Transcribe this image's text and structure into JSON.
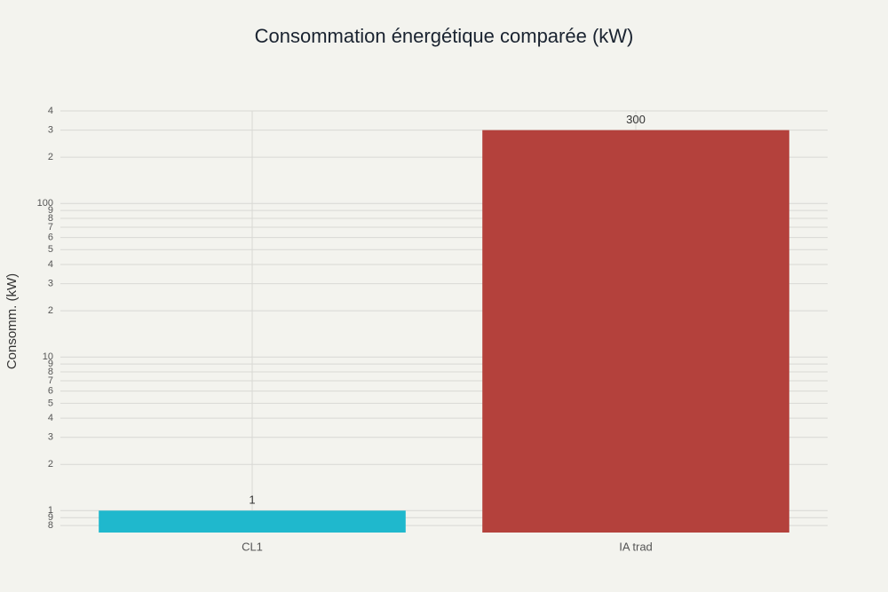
{
  "chart_data": {
    "type": "bar",
    "title": "Consommation énergétique comparée (kW)",
    "ylabel": "Consomm. (kW)",
    "categories": [
      "CL1",
      "IA trad"
    ],
    "values": [
      1,
      300
    ],
    "colors": [
      "#1FB8CD",
      "#B4413C"
    ],
    "log_y": true,
    "ylim": [
      0.72,
      400
    ],
    "yticks": [
      {
        "value": 0.8,
        "label": "8"
      },
      {
        "value": 0.9,
        "label": "9"
      },
      1,
      2,
      3,
      4,
      5,
      6,
      7,
      8,
      9,
      10,
      {
        "value": 20,
        "label": "2"
      },
      {
        "value": 30,
        "label": "3"
      },
      {
        "value": 40,
        "label": "4"
      },
      {
        "value": 50,
        "label": "5"
      },
      {
        "value": 60,
        "label": "6"
      },
      {
        "value": 70,
        "label": "7"
      },
      {
        "value": 80,
        "label": "8"
      },
      {
        "value": 90,
        "label": "9"
      },
      100,
      {
        "value": 200,
        "label": "2"
      },
      {
        "value": 300,
        "label": "3"
      },
      {
        "value": 400,
        "label": "4"
      }
    ],
    "grid": true
  }
}
